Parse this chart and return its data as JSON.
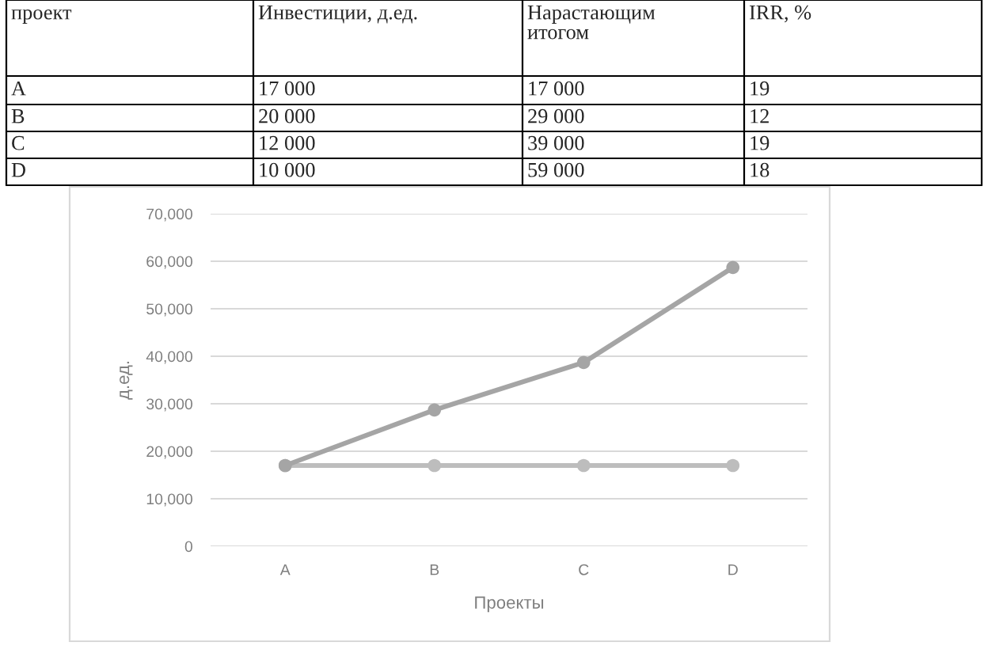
{
  "chart_data": [
    {
      "type": "other",
      "categories": [
        "проект",
        "Инвестиции, д.ед.",
        "Нарастающим\nитогом",
        "IRR, %"
      ],
      "annotations": [
        "A",
        "17 000",
        "17 000",
        "19",
        "B",
        "20 000",
        "29 000",
        "12",
        "C",
        "12 000",
        "39 000",
        "19",
        "D",
        "10 000",
        "59 000",
        "18"
      ]
    },
    {
      "type": "line",
      "categories": [
        "A",
        "B",
        "C",
        "D"
      ],
      "xlabel": "Проекты",
      "ylabel": "д.ед.",
      "series": [
        {
          "color": "#a5a5a5",
          "values": [
            17000,
            28700,
            38700,
            58700
          ]
        },
        {
          "color": "#bdbdbd",
          "values": [
            17000,
            17000,
            17000,
            17000
          ]
        }
      ],
      "ylim": [
        0,
        70000
      ],
      "yticks": [
        0,
        {
          "value": 10000,
          "label": "10,000"
        },
        {
          "value": 20000,
          "label": "20,000"
        },
        {
          "value": 30000,
          "label": "30,000"
        },
        {
          "value": 40000,
          "label": "40,000"
        },
        {
          "value": 50000,
          "label": "50,000"
        },
        {
          "value": 60000,
          "label": "60,000"
        },
        {
          "value": 70000,
          "label": "70,000"
        }
      ],
      "grid": "y",
      "marker": "circle",
      "line_style": "solid",
      "legend": false
    }
  ]
}
